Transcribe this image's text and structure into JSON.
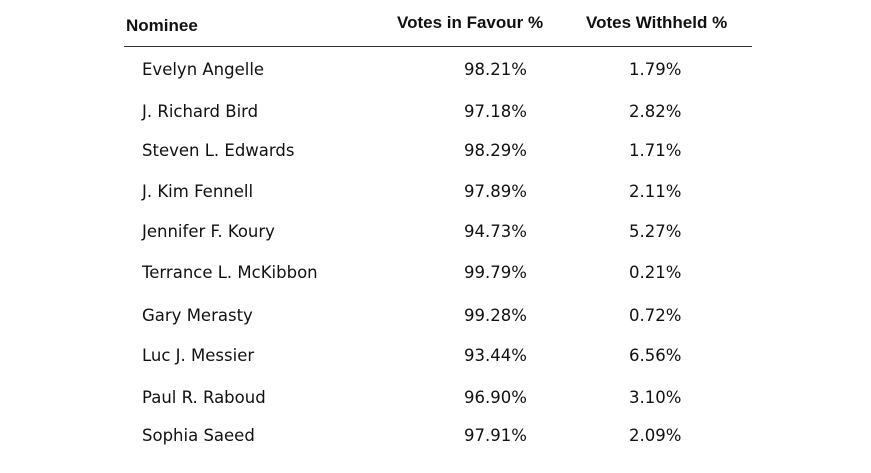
{
  "table": {
    "headers": {
      "nominee": "Nominee",
      "favour": "Votes in Favour %",
      "withheld": "Votes Withheld %"
    },
    "rows": [
      {
        "name": "Evelyn Angelle",
        "favour": "98.21%",
        "withheld": "1.79%"
      },
      {
        "name": "J. Richard Bird",
        "favour": "97.18%",
        "withheld": "2.82%"
      },
      {
        "name": "Steven L. Edwards",
        "favour": "98.29%",
        "withheld": "1.71%"
      },
      {
        "name": "J. Kim Fennell",
        "favour": "97.89%",
        "withheld": "2.11%"
      },
      {
        "name": "Jennifer F. Koury",
        "favour": "94.73%",
        "withheld": "5.27%"
      },
      {
        "name": "Terrance L. McKibbon",
        "favour": "99.79%",
        "withheld": "0.21%"
      },
      {
        "name": "Gary Merasty",
        "favour": "99.28%",
        "withheld": "0.72%"
      },
      {
        "name": "Luc J. Messier",
        "favour": "93.44%",
        "withheld": "6.56%"
      },
      {
        "name": "Paul R. Raboud",
        "favour": "96.90%",
        "withheld": "3.10%"
      },
      {
        "name": "Sophia Saeed",
        "favour": "97.91%",
        "withheld": "2.09%"
      }
    ]
  }
}
